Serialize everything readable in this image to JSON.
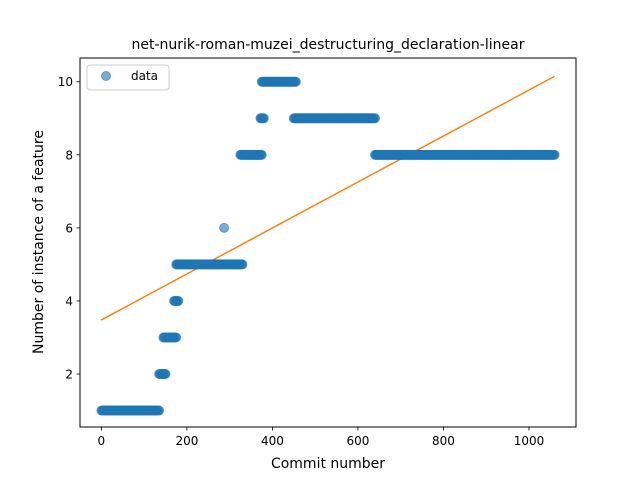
{
  "chart_data": {
    "type": "scatter",
    "title": "net-nurik-roman-muzei_destructuring_declaration-linear",
    "xlabel": "Commit number",
    "ylabel": "Number of instance of a feature",
    "xlim": [
      -50,
      1110
    ],
    "ylim": [
      0.55,
      10.65
    ],
    "x_ticks": [
      0,
      200,
      400,
      600,
      800,
      1000
    ],
    "y_ticks": [
      2,
      4,
      6,
      8,
      10
    ],
    "legend": {
      "position": "upper-left",
      "entries": [
        "data"
      ]
    },
    "grid": false,
    "colors": {
      "data": "#1f77b4",
      "fit": "#ff7f0e"
    },
    "series": [
      {
        "name": "data",
        "kind": "points",
        "segments": [
          {
            "x_start": 0,
            "x_end": 135,
            "y": 1
          },
          {
            "x_start": 135,
            "x_end": 150,
            "y": 2
          },
          {
            "x_start": 145,
            "x_end": 175,
            "y": 3
          },
          {
            "x_start": 170,
            "x_end": 180,
            "y": 4
          },
          {
            "x_start": 175,
            "x_end": 330,
            "y": 5
          },
          {
            "x_start": 287,
            "x_end": 287,
            "y": 6
          },
          {
            "x_start": 325,
            "x_end": 375,
            "y": 8
          },
          {
            "x_start": 372,
            "x_end": 380,
            "y": 9
          },
          {
            "x_start": 375,
            "x_end": 455,
            "y": 10
          },
          {
            "x_start": 450,
            "x_end": 640,
            "y": 9
          },
          {
            "x_start": 640,
            "x_end": 1060,
            "y": 8
          }
        ]
      },
      {
        "name": "fit",
        "kind": "line",
        "x": [
          0,
          1060
        ],
        "y": [
          3.48,
          10.15
        ]
      }
    ]
  }
}
